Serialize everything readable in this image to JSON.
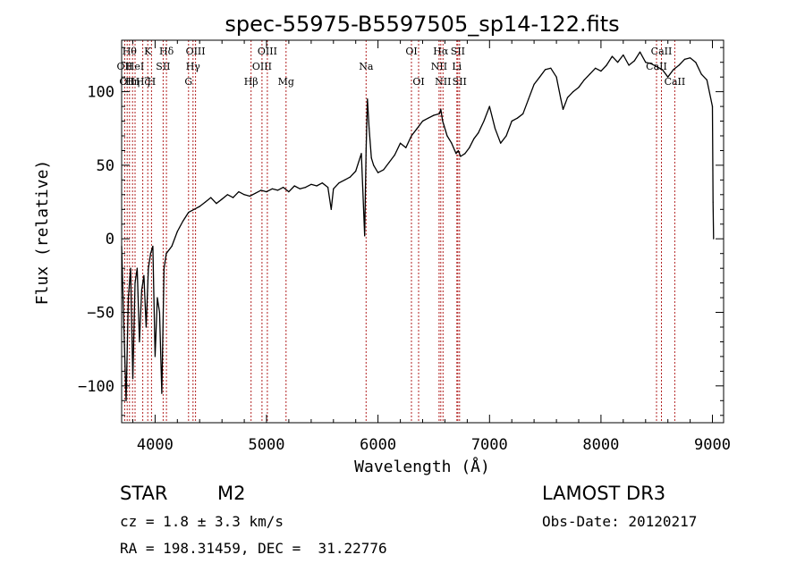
{
  "chart_data": {
    "type": "line",
    "title": "spec-55975-B5597505_sp14-122.fits",
    "xlabel": "Wavelength (Å)",
    "ylabel": "Flux (relative)",
    "xlim": [
      3700,
      9100
    ],
    "ylim": [
      -125,
      135
    ],
    "xticks": [
      4000,
      5000,
      6000,
      7000,
      8000,
      9000
    ],
    "yticks": [
      -100,
      -50,
      0,
      50,
      100
    ],
    "line_color": "#000000",
    "marker_color": "#b22222",
    "series": [
      {
        "name": "flux",
        "x": [
          3700,
          3720,
          3740,
          3760,
          3780,
          3800,
          3820,
          3840,
          3860,
          3880,
          3900,
          3920,
          3940,
          3960,
          3980,
          4000,
          4020,
          4040,
          4060,
          4080,
          4100,
          4150,
          4200,
          4250,
          4300,
          4350,
          4400,
          4450,
          4500,
          4550,
          4600,
          4650,
          4700,
          4750,
          4800,
          4850,
          4900,
          4950,
          5000,
          5050,
          5100,
          5150,
          5200,
          5250,
          5300,
          5350,
          5400,
          5450,
          5500,
          5550,
          5580,
          5600,
          5650,
          5700,
          5750,
          5800,
          5850,
          5880,
          5893,
          5905,
          5920,
          5940,
          5960,
          6000,
          6050,
          6100,
          6150,
          6200,
          6250,
          6300,
          6350,
          6400,
          6450,
          6500,
          6550,
          6563,
          6580,
          6620,
          6660,
          6700,
          6720,
          6740,
          6780,
          6820,
          6860,
          6900,
          6950,
          7000,
          7050,
          7100,
          7150,
          7200,
          7250,
          7300,
          7350,
          7400,
          7450,
          7500,
          7550,
          7600,
          7640,
          7660,
          7680,
          7700,
          7750,
          7800,
          7850,
          7900,
          7950,
          8000,
          8050,
          8100,
          8150,
          8200,
          8250,
          8300,
          8350,
          8400,
          8450,
          8500,
          8550,
          8600,
          8650,
          8700,
          8750,
          8800,
          8850,
          8900,
          8950,
          9000,
          9005,
          9010
        ],
        "y": [
          -5,
          -60,
          -110,
          -40,
          -20,
          -95,
          -30,
          -20,
          -70,
          -35,
          -25,
          -60,
          -20,
          -10,
          -5,
          -80,
          -40,
          -50,
          -105,
          -20,
          -10,
          -5,
          5,
          12,
          18,
          20,
          22,
          25,
          28,
          24,
          27,
          30,
          28,
          32,
          30,
          29,
          31,
          33,
          32,
          34,
          33,
          35,
          32,
          36,
          34,
          35,
          37,
          36,
          38,
          35,
          20,
          34,
          38,
          40,
          42,
          46,
          58,
          2,
          60,
          95,
          75,
          55,
          50,
          45,
          47,
          52,
          57,
          65,
          62,
          70,
          75,
          80,
          82,
          84,
          85,
          88,
          80,
          70,
          65,
          58,
          60,
          56,
          58,
          62,
          68,
          72,
          80,
          90,
          75,
          65,
          70,
          80,
          82,
          85,
          95,
          105,
          110,
          115,
          116,
          110,
          95,
          88,
          92,
          96,
          100,
          103,
          108,
          112,
          116,
          114,
          118,
          124,
          120,
          125,
          118,
          121,
          127,
          120,
          119,
          117,
          115,
          110,
          115,
          118,
          122,
          123,
          120,
          112,
          108,
          90,
          25,
          0
        ]
      }
    ],
    "lines": [
      {
        "wl": 3727,
        "label": "OII",
        "row": 1
      },
      {
        "wl": 3750,
        "label": "OII",
        "row": 2
      },
      {
        "wl": 3771,
        "label": "Hθ",
        "row": 0
      },
      {
        "wl": 3798,
        "label": "Hη",
        "row": 2
      },
      {
        "wl": 3820,
        "label": "HeI",
        "row": 1
      },
      {
        "wl": 3889,
        "label": "Hζ",
        "row": 2
      },
      {
        "wl": 3934,
        "label": "K",
        "row": 0
      },
      {
        "wl": 3968,
        "label": "H",
        "row": 2
      },
      {
        "wl": 4072,
        "label": "SII",
        "row": 1
      },
      {
        "wl": 4102,
        "label": "Hδ",
        "row": 0
      },
      {
        "wl": 4300,
        "label": "G",
        "row": 2
      },
      {
        "wl": 4340,
        "label": "Hγ",
        "row": 1
      },
      {
        "wl": 4363,
        "label": "OIII",
        "row": 0
      },
      {
        "wl": 4861,
        "label": "Hβ",
        "row": 2
      },
      {
        "wl": 4959,
        "label": "OIII",
        "row": 1
      },
      {
        "wl": 5007,
        "label": "OIII",
        "row": 0
      },
      {
        "wl": 5175,
        "label": "Mg",
        "row": 2
      },
      {
        "wl": 5893,
        "label": "Na",
        "row": 1
      },
      {
        "wl": 6300,
        "label": "OI",
        "row": 0
      },
      {
        "wl": 6364,
        "label": "OI",
        "row": 2
      },
      {
        "wl": 6548,
        "label": "NII",
        "row": 1
      },
      {
        "wl": 6563,
        "label": "Hα",
        "row": 0
      },
      {
        "wl": 6583,
        "label": "NII",
        "row": 2
      },
      {
        "wl": 6707,
        "label": "Li",
        "row": 1
      },
      {
        "wl": 6716,
        "label": "SII",
        "row": 0
      },
      {
        "wl": 6731,
        "label": "SII",
        "row": 2
      },
      {
        "wl": 8498,
        "label": "CaII",
        "row": 1
      },
      {
        "wl": 8542,
        "label": "CaII",
        "row": 0
      },
      {
        "wl": 8662,
        "label": "CaII",
        "row": 2
      }
    ]
  },
  "info": {
    "object_class": "STAR",
    "subclass": "M2",
    "survey": "LAMOST DR3",
    "cz": "cz = 1.8 ± 3.3 km/s",
    "obs_date": "Obs-Date: 20120217",
    "coords": "RA = 198.31459, DEC =  31.22776"
  }
}
